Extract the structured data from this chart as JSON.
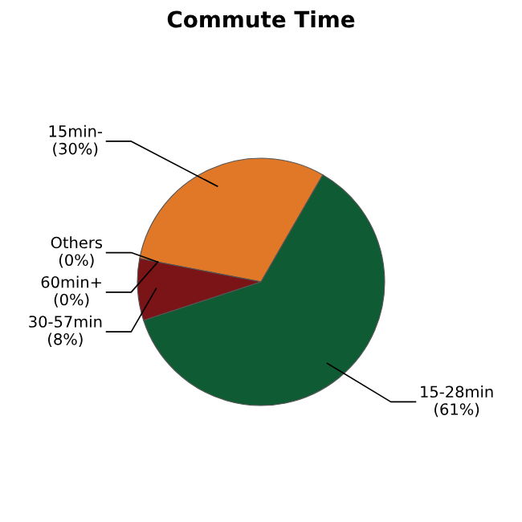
{
  "chart_data": {
    "type": "pie",
    "title": "Commute Time",
    "categories": [
      "15min-",
      "Others",
      "60min+",
      "30-57min",
      "15-28min"
    ],
    "values": [
      30,
      0,
      0,
      8,
      61
    ],
    "value_labels": [
      "(30%)",
      "(0%)",
      "(0%)",
      "(8%)",
      "(61%)"
    ],
    "colors": [
      "#e07828",
      "#9c9c9c",
      "#4a4a8c",
      "#7a1416",
      "#0f5c34"
    ]
  }
}
